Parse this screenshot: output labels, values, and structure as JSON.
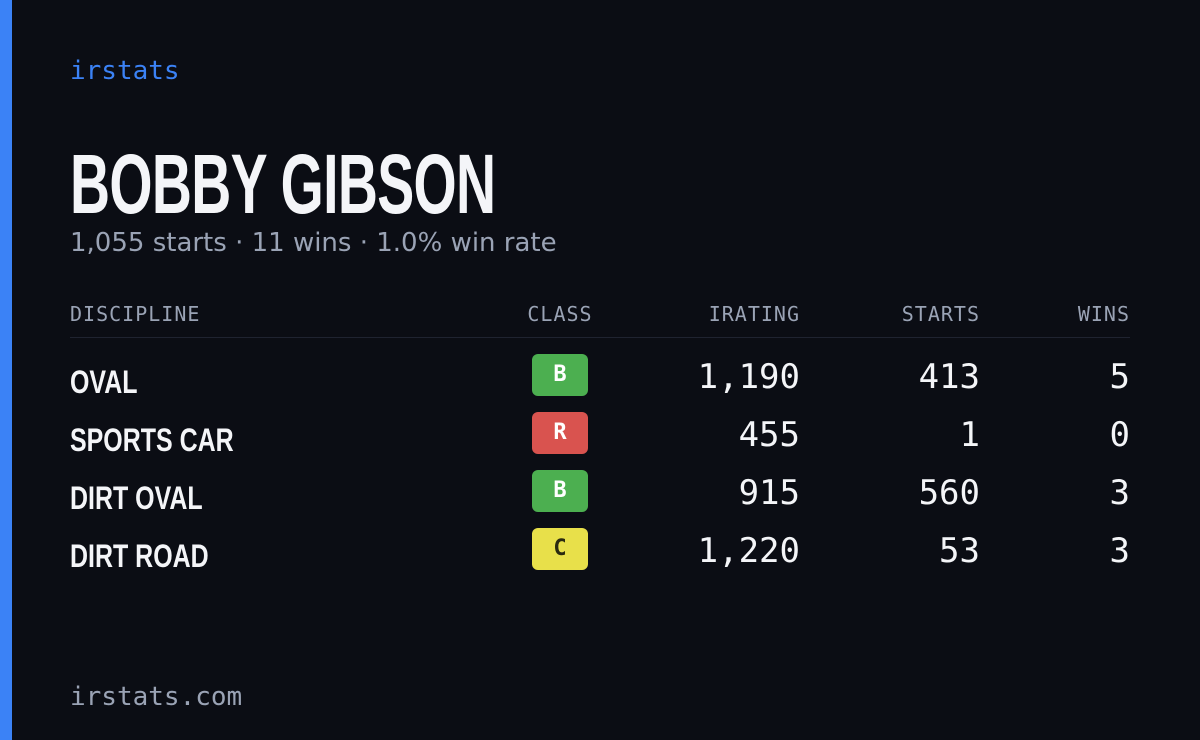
{
  "brand": "irstats",
  "driver": {
    "name": "BOBBY GIBSON",
    "summary": "1,055 starts · 11 wins · 1.0% win rate"
  },
  "table": {
    "headers": [
      "DISCIPLINE",
      "CLASS",
      "IRATING",
      "STARTS",
      "WINS"
    ],
    "rows": [
      {
        "discipline": "OVAL",
        "class": "B",
        "class_color": "#4caf50",
        "irating": "1,190",
        "starts": "413",
        "wins": "5"
      },
      {
        "discipline": "SPORTS CAR",
        "class": "R",
        "class_color": "#d9534f",
        "irating": "455",
        "starts": "1",
        "wins": "0"
      },
      {
        "discipline": "DIRT OVAL",
        "class": "B",
        "class_color": "#4caf50",
        "irating": "915",
        "starts": "560",
        "wins": "3"
      },
      {
        "discipline": "DIRT ROAD",
        "class": "C",
        "class_color": "#e8e04a",
        "irating": "1,220",
        "starts": "53",
        "wins": "3"
      }
    ]
  },
  "footer": "irstats.com"
}
